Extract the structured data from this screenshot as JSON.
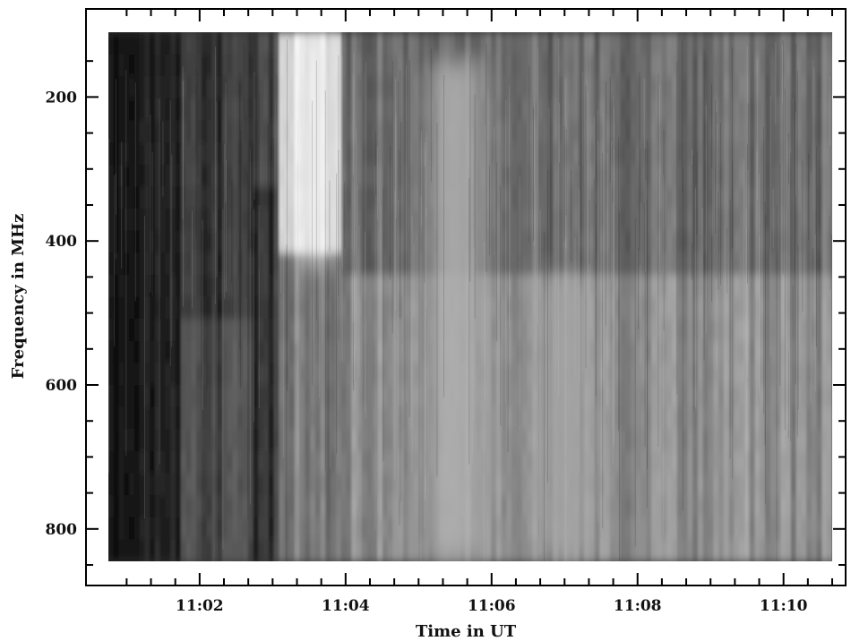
{
  "chart_data": {
    "type": "heatmap",
    "title": "",
    "xlabel": "Time in UT",
    "ylabel": "Frequency in MHz",
    "x_ticks": [
      "11:02",
      "11:04",
      "11:06",
      "11:08",
      "11:10"
    ],
    "y_ticks": [
      200,
      400,
      600,
      800
    ],
    "x_range": [
      "11:00:45",
      "11:10:40"
    ],
    "y_range": [
      110,
      845
    ],
    "y_reversed": true,
    "colormap": "grayscale",
    "colors": {
      "low": "#000000",
      "high": "#ffffff"
    },
    "features": [
      {
        "label": "bright burst",
        "time": "11:03:35",
        "freq_low": 115,
        "freq_high": 430,
        "level": 0.95
      },
      {
        "label": "broadband emission",
        "time": "11:05:30",
        "freq_low": 150,
        "freq_high": 840,
        "level": 0.7
      },
      {
        "label": "broadband emission",
        "time": "11:07:00",
        "freq_low": 450,
        "freq_high": 840,
        "level": 0.65
      }
    ]
  }
}
